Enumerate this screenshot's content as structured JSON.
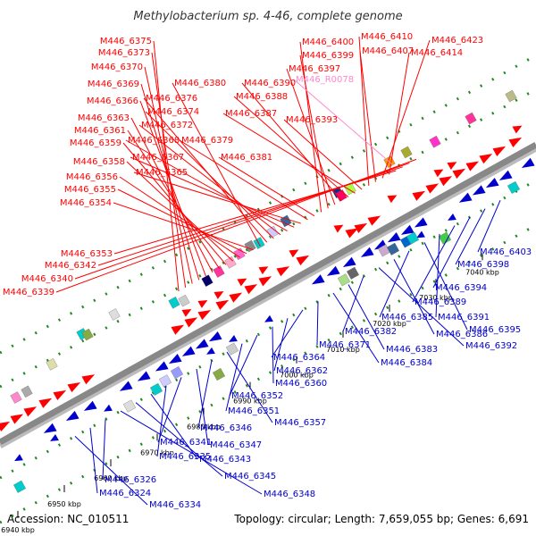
{
  "title": "Methylobacterium sp. 4-46, complete genome",
  "footer": {
    "accession": "Accession: NC_010511",
    "summary": "Topology: circular; Length: 7,659,055 bp; Genes: 6,691"
  },
  "colors": {
    "forward": "#ff0000",
    "reverse": "#0000cc",
    "rna": "#ff88cc",
    "backbone": "#888888",
    "tick": "#228822"
  },
  "ticks": [
    "6940 kbp",
    "6950 kbp",
    "6960 kbp",
    "6970 kbp",
    "6980 kbp",
    "6990 kbp",
    "7000 kbp",
    "7010 kbp",
    "7020 kbp",
    "7030 kbp",
    "7040 kbp"
  ],
  "labels": {
    "forward": [
      "M446_6375",
      "M446_6373",
      "M446_6370",
      "M446_6369",
      "M446_6366",
      "M446_6363",
      "M446_6361",
      "M446_6359",
      "M446_6358",
      "M446_6356",
      "M446_6355",
      "M446_6354",
      "M446_6380",
      "M446_6376",
      "M446_6374",
      "M446_6372",
      "M446_6368",
      "M446_6367",
      "M446_6365",
      "M446_6379",
      "M446_6381",
      "M446_6400",
      "M446_6399",
      "M446_6397",
      "M446_6390",
      "M446_6388",
      "M446_6387",
      "M446_6393",
      "M446_6410",
      "M446_6407",
      "M446_6423",
      "M446_6414",
      "M446_6353",
      "M446_6342",
      "M446_6340",
      "M446_6339"
    ],
    "rna": [
      "M446_R0078"
    ],
    "reverse": [
      "M446_6403",
      "M446_6398",
      "M446_6394",
      "M446_6389",
      "M446_6391",
      "M446_6395",
      "M446_6385",
      "M446_6386",
      "M446_6392",
      "M446_6382",
      "M446_6383",
      "M446_6384",
      "M446_6371",
      "M446_6364",
      "M446_6362",
      "M446_6360",
      "M446_6352",
      "M446_6351",
      "M446_6357",
      "M446_6346",
      "M446_6347",
      "M446_6341",
      "M446_6335",
      "M446_6343",
      "M446_6345",
      "M446_6348",
      "M446_6326",
      "M446_6324",
      "M446_6334"
    ]
  }
}
